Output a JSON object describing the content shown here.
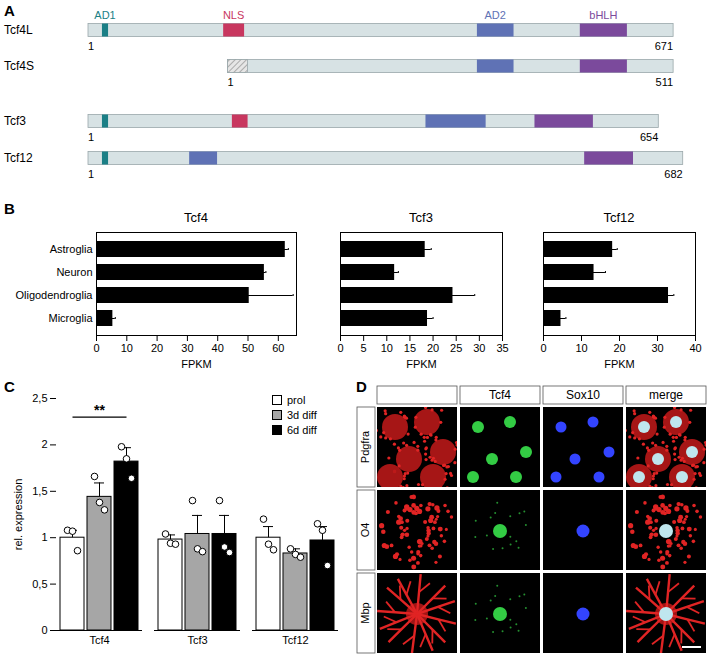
{
  "panel_labels": [
    "A",
    "B",
    "C",
    "D"
  ],
  "diagram": {
    "domain_colors": {
      "AD1": "#1b7f86",
      "NLS": "#c8375f",
      "AD2": "#5f72b5",
      "bHLH": "#7b4a9c"
    },
    "proteins": [
      {
        "name": "Tcf4L",
        "length": 671,
        "domains": [
          {
            "name": "AD1",
            "start": 17,
            "end": 23
          },
          {
            "name": "NLS",
            "start": 156,
            "end": 179
          },
          {
            "name": "AD2",
            "start": 447,
            "end": 488
          },
          {
            "name": "bHLH",
            "start": 565,
            "end": 618
          }
        ]
      },
      {
        "name": "Tcf4S",
        "length": 511,
        "unique_start": [
          1,
          23
        ],
        "domains": [
          {
            "name": "AD2",
            "start": 287,
            "end": 328
          },
          {
            "name": "bHLH",
            "start": 405,
            "end": 458
          }
        ]
      },
      {
        "name": "Tcf3",
        "length": 654,
        "domains": [
          {
            "name": "AD1",
            "start": 17,
            "end": 23
          },
          {
            "name": "NLS",
            "start": 166,
            "end": 183
          },
          {
            "name": "AD2",
            "start": 388,
            "end": 456
          },
          {
            "name": "bHLH",
            "start": 513,
            "end": 579
          }
        ]
      },
      {
        "name": "Tcf12",
        "length": 682,
        "domains": [
          {
            "name": "AD1",
            "start": 17,
            "end": 23
          },
          {
            "name": "AD2",
            "start": 117,
            "end": 148
          },
          {
            "name": "bHLH",
            "start": 570,
            "end": 625
          }
        ]
      }
    ]
  },
  "chart_data": [
    {
      "type": "bar",
      "orientation": "horizontal",
      "title": "Tcf4",
      "categories": [
        "Astroglia",
        "Neuron",
        "Oligodendroglia",
        "Microglia"
      ],
      "values": [
        62.3,
        55.4,
        50.4,
        5.4
      ],
      "errors": [
        1,
        0.5,
        14.5,
        0.8
      ],
      "xlim": [
        0,
        66
      ],
      "xticks": [
        0,
        10,
        20,
        30,
        40,
        50,
        60
      ],
      "x_label": "FPKM",
      "color": "#000000"
    },
    {
      "type": "bar",
      "orientation": "horizontal",
      "title": "Tcf3",
      "categories": [
        "Astroglia",
        "Neuron",
        "Oligodendroglia",
        "Microglia"
      ],
      "values": [
        18.3,
        11.7,
        24.3,
        18.8
      ],
      "errors": [
        1.3,
        0.8,
        4.7,
        1.2
      ],
      "xlim": [
        0,
        35
      ],
      "xticks": [
        0,
        5,
        10,
        15,
        20,
        25,
        30,
        35
      ],
      "x_label": "FPKM",
      "color": "#000000",
      "tick_labels": "x"
    },
    {
      "type": "bar",
      "orientation": "horizontal",
      "title": "Tcf12",
      "categories": [
        "Astroglia",
        "Neuron",
        "Oligodendroglia",
        "Microglia"
      ],
      "values": [
        18.2,
        13.3,
        32.9,
        4.6
      ],
      "errors": [
        1.2,
        3,
        1.4,
        1.3
      ],
      "xlim": [
        0,
        40
      ],
      "xticks": [
        0,
        10,
        20,
        30,
        40
      ],
      "x_label": "FPKM",
      "color": "#000000",
      "tick_labels": "x"
    },
    {
      "type": "bar",
      "categories": [
        "Tcf4",
        "Tcf3",
        "Tcf12"
      ],
      "series": [
        {
          "name": "prol",
          "color": "#ffffff",
          "values": [
            1.0,
            0.98,
            1.0
          ],
          "errors": [
            0.08,
            0.05,
            0.12
          ],
          "points": [
            [
              1.08,
              1.07,
              0.86
            ],
            [
              1.04,
              0.94,
              0.93
            ],
            [
              1.2,
              0.93,
              0.87
            ]
          ]
        },
        {
          "name": "3d diff",
          "color": "#a6a6a6",
          "values": [
            1.44,
            1.04,
            0.83
          ],
          "errors": [
            0.15,
            0.2,
            0.05
          ],
          "points": [
            [
              1.66,
              1.38,
              1.3
            ],
            [
              1.4,
              0.88,
              0.85
            ],
            [
              0.88,
              0.82,
              0.79
            ]
          ]
        },
        {
          "name": "6d diff",
          "color": "#000000",
          "values": [
            1.82,
            1.04,
            0.97
          ],
          "errors": [
            0.15,
            0.2,
            0.15
          ],
          "points": [
            [
              1.98,
              1.85,
              1.64
            ],
            [
              1.4,
              0.9,
              0.84
            ],
            [
              1.15,
              1.08,
              0.7
            ]
          ]
        }
      ],
      "ylim": [
        0,
        2.5
      ],
      "yticks": [
        0,
        {
          "value": 0.5,
          "label": "0,5"
        },
        1,
        {
          "value": 1.5,
          "label": "1,5"
        },
        2,
        {
          "value": 2.5,
          "label": "2,5"
        }
      ],
      "y_label": "rel. expression",
      "legend": "top-right",
      "annotations": [
        {
          "text": "**",
          "category": "Tcf4",
          "from": "prol",
          "to": "6d diff",
          "y": 2.3
        }
      ]
    }
  ],
  "micrographs": {
    "columns": [
      "Tcf4",
      "Sox10",
      "merge"
    ],
    "rows": [
      "Pdgfra",
      "O4",
      "Mbp"
    ]
  }
}
